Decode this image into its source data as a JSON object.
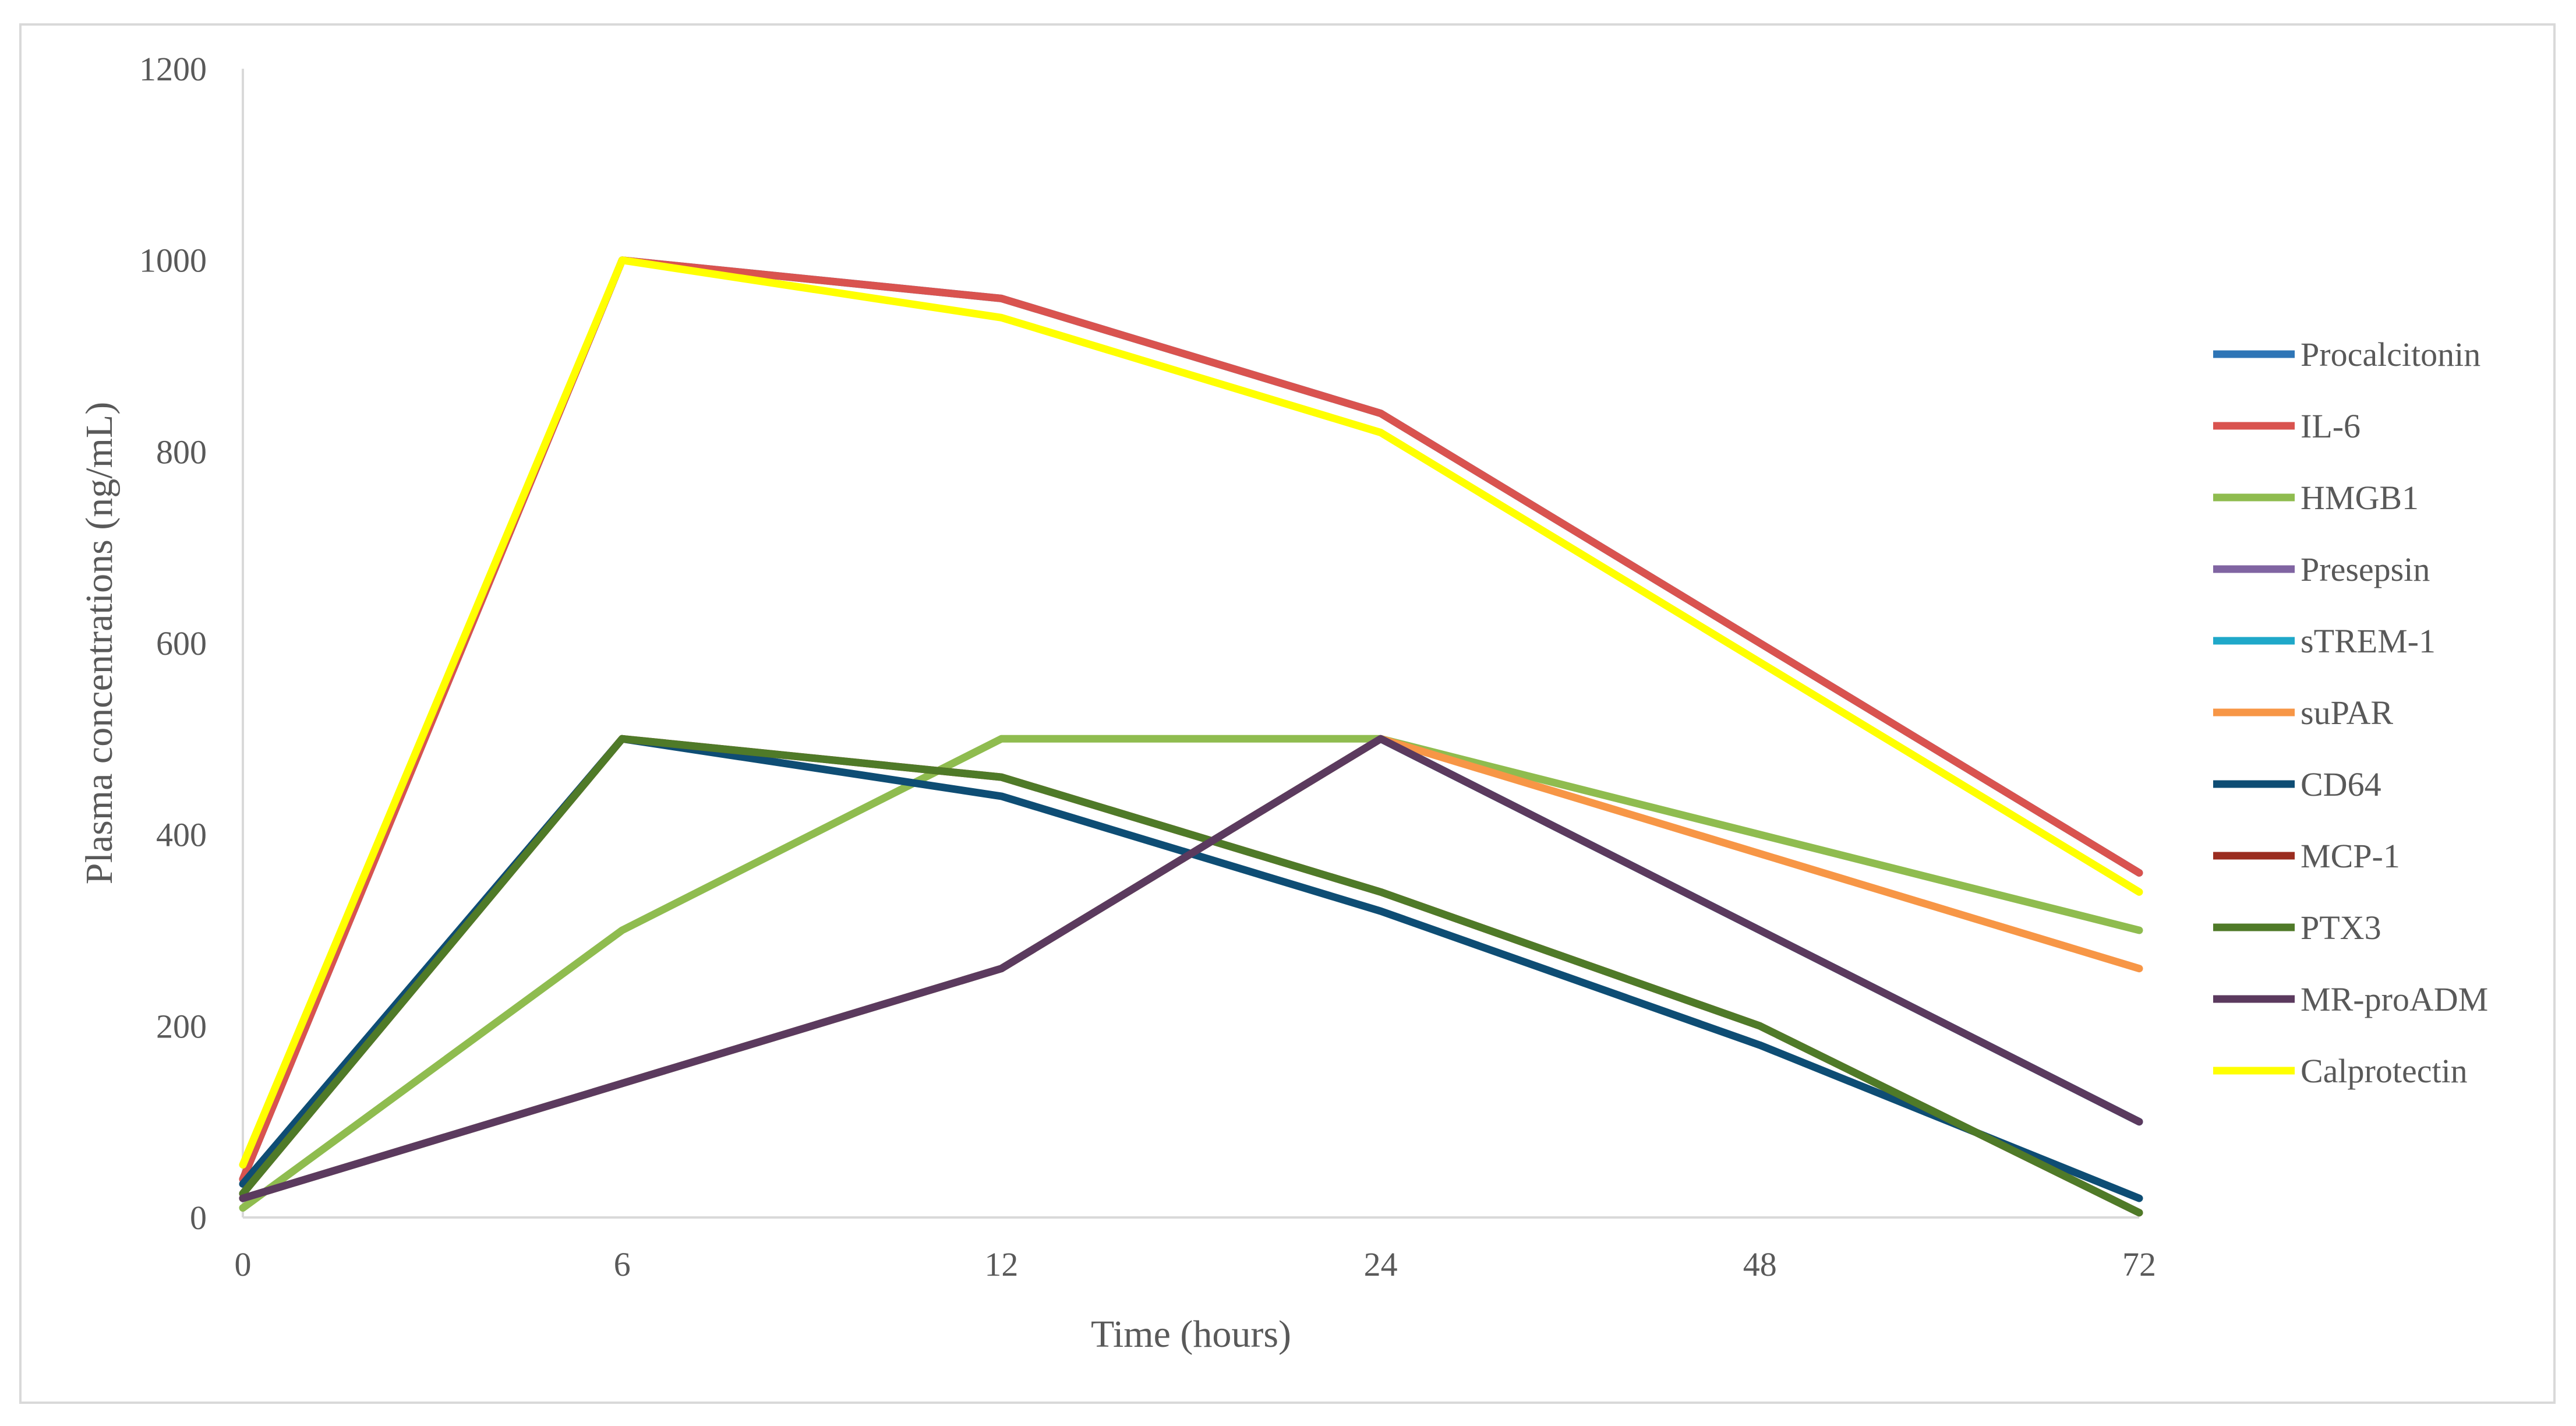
{
  "chart_data": {
    "type": "line",
    "title": "",
    "xlabel": "Time (hours)",
    "ylabel": "Plasma concentrations (ng/mL)",
    "categories": [
      "0",
      "6",
      "12",
      "24",
      "48",
      "72"
    ],
    "ylim": [
      0,
      1200
    ],
    "yticks": [
      0,
      200,
      400,
      600,
      800,
      1000,
      1200
    ],
    "grid": false,
    "legend_position": "right",
    "series": [
      {
        "name": "Procalcitonin",
        "color": "#2e75b6",
        "values": [
          40,
          1000,
          960,
          840,
          600,
          360
        ]
      },
      {
        "name": "IL-6",
        "color": "#d9534f",
        "values": [
          40,
          1000,
          960,
          840,
          600,
          360
        ]
      },
      {
        "name": "HMGB1",
        "color": "#8fbc4f",
        "values": [
          10,
          300,
          500,
          500,
          400,
          300
        ]
      },
      {
        "name": "Presepsin",
        "color": "#8064a2",
        "values": [
          20,
          140,
          260,
          500,
          300,
          100
        ]
      },
      {
        "name": "sTREM-1",
        "color": "#1fa8c9",
        "values": [
          20,
          140,
          260,
          500,
          300,
          100
        ]
      },
      {
        "name": "suPAR",
        "color": "#f79646",
        "values": [
          20,
          140,
          260,
          500,
          380,
          260
        ]
      },
      {
        "name": "CD64",
        "color": "#0e4d74",
        "values": [
          35,
          500,
          440,
          320,
          180,
          20
        ]
      },
      {
        "name": "MCP-1",
        "color": "#9b2d20",
        "values": [
          25,
          500,
          460,
          340,
          200,
          5
        ]
      },
      {
        "name": "PTX3",
        "color": "#4f7a28",
        "values": [
          25,
          500,
          460,
          340,
          200,
          5
        ]
      },
      {
        "name": "MR-proADM",
        "color": "#5b3a5e",
        "values": [
          20,
          140,
          260,
          500,
          300,
          100
        ]
      },
      {
        "name": "Calprotectin",
        "color": "#ffff00",
        "values": [
          55,
          1000,
          940,
          820,
          580,
          340
        ]
      }
    ],
    "draw_order": [
      0,
      1,
      2,
      3,
      4,
      5,
      6,
      7,
      8,
      9,
      10
    ]
  }
}
